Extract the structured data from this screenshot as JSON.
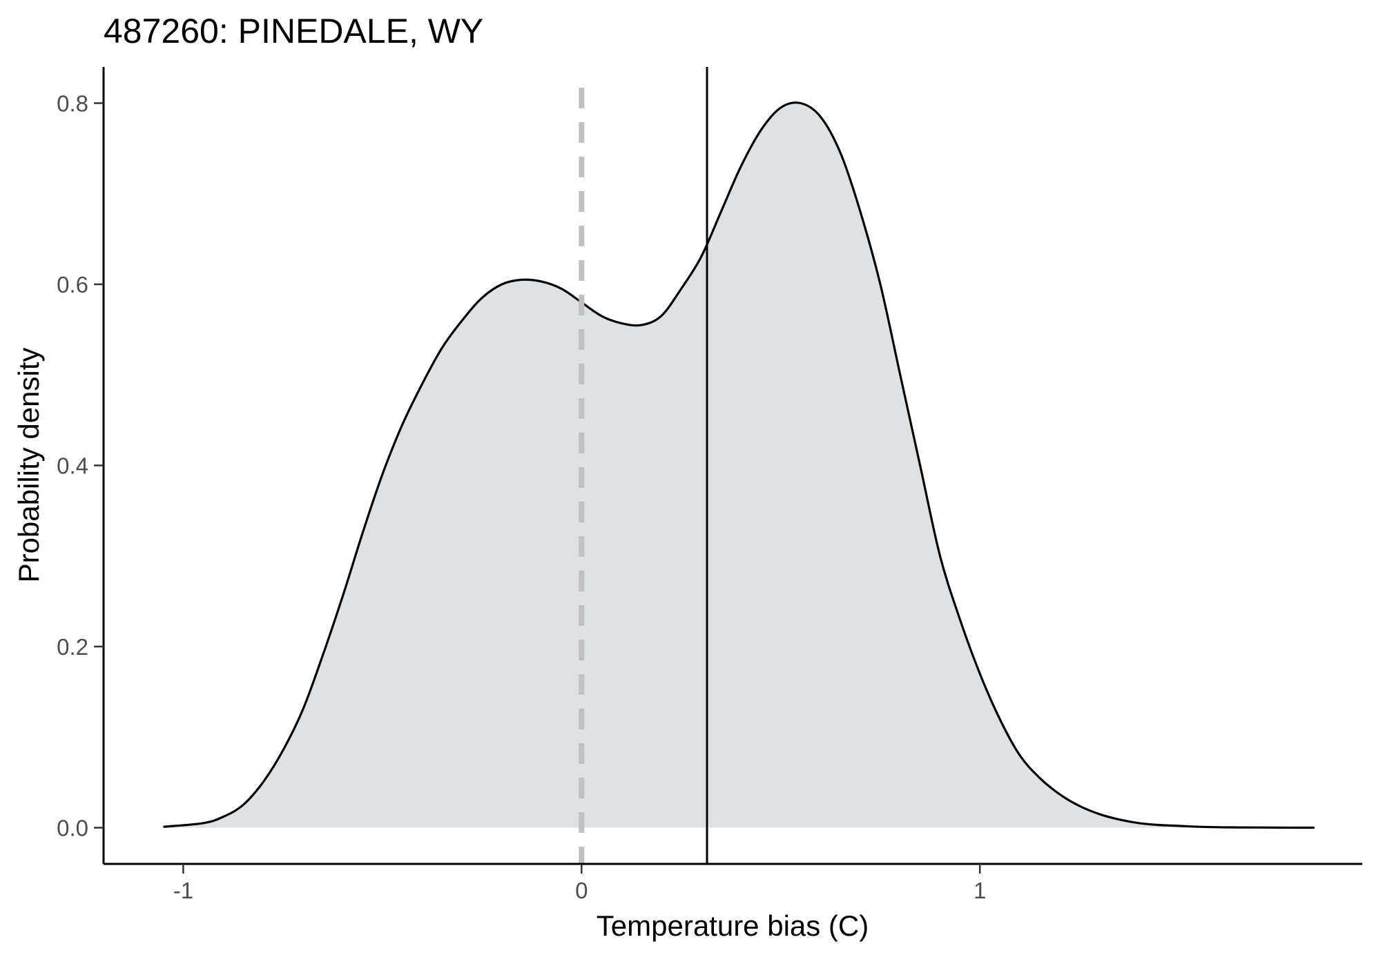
{
  "chart_data": {
    "type": "area",
    "title": "487260: PINEDALE, WY",
    "xlabel": "Temperature bias (C)",
    "ylabel": "Probability density",
    "xlim": [
      -1.2,
      1.96
    ],
    "ylim": [
      -0.04,
      0.84
    ],
    "x_ticks": [
      -1,
      0,
      1
    ],
    "x_tick_labels": [
      "-1",
      "0",
      "1"
    ],
    "y_ticks": [
      0.0,
      0.2,
      0.4,
      0.6,
      0.8
    ],
    "y_tick_labels": [
      "0.0",
      "0.2",
      "0.4",
      "0.6",
      "0.8"
    ],
    "grid": false,
    "reference_lines": [
      {
        "x": 0.0,
        "style": "dashed",
        "color": "#c0c0c0"
      },
      {
        "x": 0.315,
        "style": "solid",
        "color": "#000000"
      }
    ],
    "fill_color": "#dfe2e5",
    "line_color": "#000000",
    "series": [
      {
        "x": [
          -1.05,
          -0.95,
          -0.9,
          -0.85,
          -0.8,
          -0.75,
          -0.7,
          -0.65,
          -0.6,
          -0.55,
          -0.5,
          -0.45,
          -0.4,
          -0.35,
          -0.3,
          -0.25,
          -0.2,
          -0.15,
          -0.1,
          -0.05,
          0.0,
          0.05,
          0.1,
          0.15,
          0.2,
          0.25,
          0.3,
          0.35,
          0.4,
          0.45,
          0.5,
          0.55,
          0.6,
          0.65,
          0.7,
          0.75,
          0.8,
          0.85,
          0.9,
          0.95,
          1.0,
          1.05,
          1.1,
          1.15,
          1.2,
          1.25,
          1.3,
          1.35,
          1.4,
          1.45,
          1.5,
          1.55,
          1.6,
          1.65,
          1.7,
          1.75,
          1.8,
          1.84
        ],
        "y": [
          0.001,
          0.005,
          0.012,
          0.025,
          0.05,
          0.085,
          0.13,
          0.19,
          0.255,
          0.325,
          0.39,
          0.445,
          0.49,
          0.53,
          0.56,
          0.585,
          0.6,
          0.605,
          0.603,
          0.595,
          0.58,
          0.565,
          0.557,
          0.555,
          0.565,
          0.595,
          0.63,
          0.68,
          0.73,
          0.77,
          0.795,
          0.8,
          0.785,
          0.745,
          0.68,
          0.6,
          0.5,
          0.4,
          0.3,
          0.23,
          0.17,
          0.12,
          0.08,
          0.055,
          0.037,
          0.024,
          0.015,
          0.009,
          0.005,
          0.003,
          0.002,
          0.001,
          0.0005,
          0.0003,
          0.0002,
          0.0001,
          0.0,
          0.0
        ]
      }
    ]
  }
}
